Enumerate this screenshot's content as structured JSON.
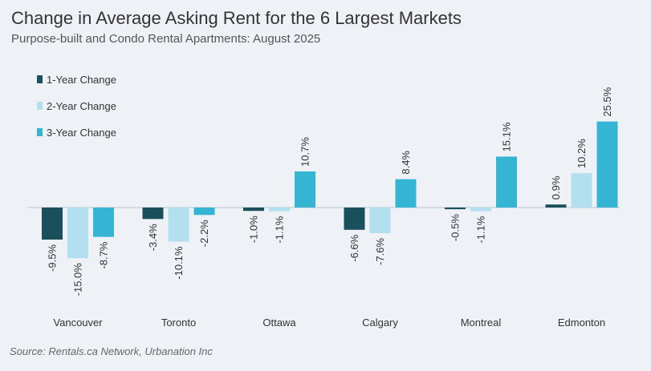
{
  "header": {
    "title": "Change in Average Asking Rent for the 6 Largest Markets",
    "subtitle": "Purpose-built and Condo Rental Apartments: August 2025"
  },
  "source": "Source: Rentals.ca Network, Urbanation Inc",
  "colors": {
    "one_year": "#1a4f5c",
    "two_year": "#b3e0ee",
    "three_year": "#35b4d4",
    "axis": "#b8c2cc",
    "label": "#333333"
  },
  "chart_data": {
    "type": "bar",
    "categories": [
      "Vancouver",
      "Toronto",
      "Ottawa",
      "Calgary",
      "Montreal",
      "Edmonton"
    ],
    "series": [
      {
        "name": "1-Year Change",
        "values": [
          -9.5,
          -3.4,
          -1.0,
          -6.6,
          -0.5,
          0.9
        ],
        "labels": [
          "-9.5%",
          "-3.4%",
          "-1.0%",
          "-6.6%",
          "-0.5%",
          "0.9%"
        ]
      },
      {
        "name": "2-Year Change",
        "values": [
          -15.0,
          -10.1,
          -1.1,
          -7.6,
          -1.1,
          10.2
        ],
        "labels": [
          "-15.0%",
          "-10.1%",
          "-1.1%",
          "-7.6%",
          "-1.1%",
          "10.2%"
        ]
      },
      {
        "name": "3-Year Change",
        "values": [
          -8.7,
          -2.2,
          10.7,
          8.4,
          15.1,
          25.5
        ],
        "labels": [
          "-8.7%",
          "-2.2%",
          "10.7%",
          "8.4%",
          "15.1%",
          "25.5%"
        ]
      }
    ],
    "title": "Change in Average Asking Rent for the 6 Largest Markets",
    "subtitle": "Purpose-built and Condo Rental Apartments: August 2025",
    "legend_position": "top-left",
    "grid": false,
    "ylim": [
      -15,
      25.5
    ]
  }
}
